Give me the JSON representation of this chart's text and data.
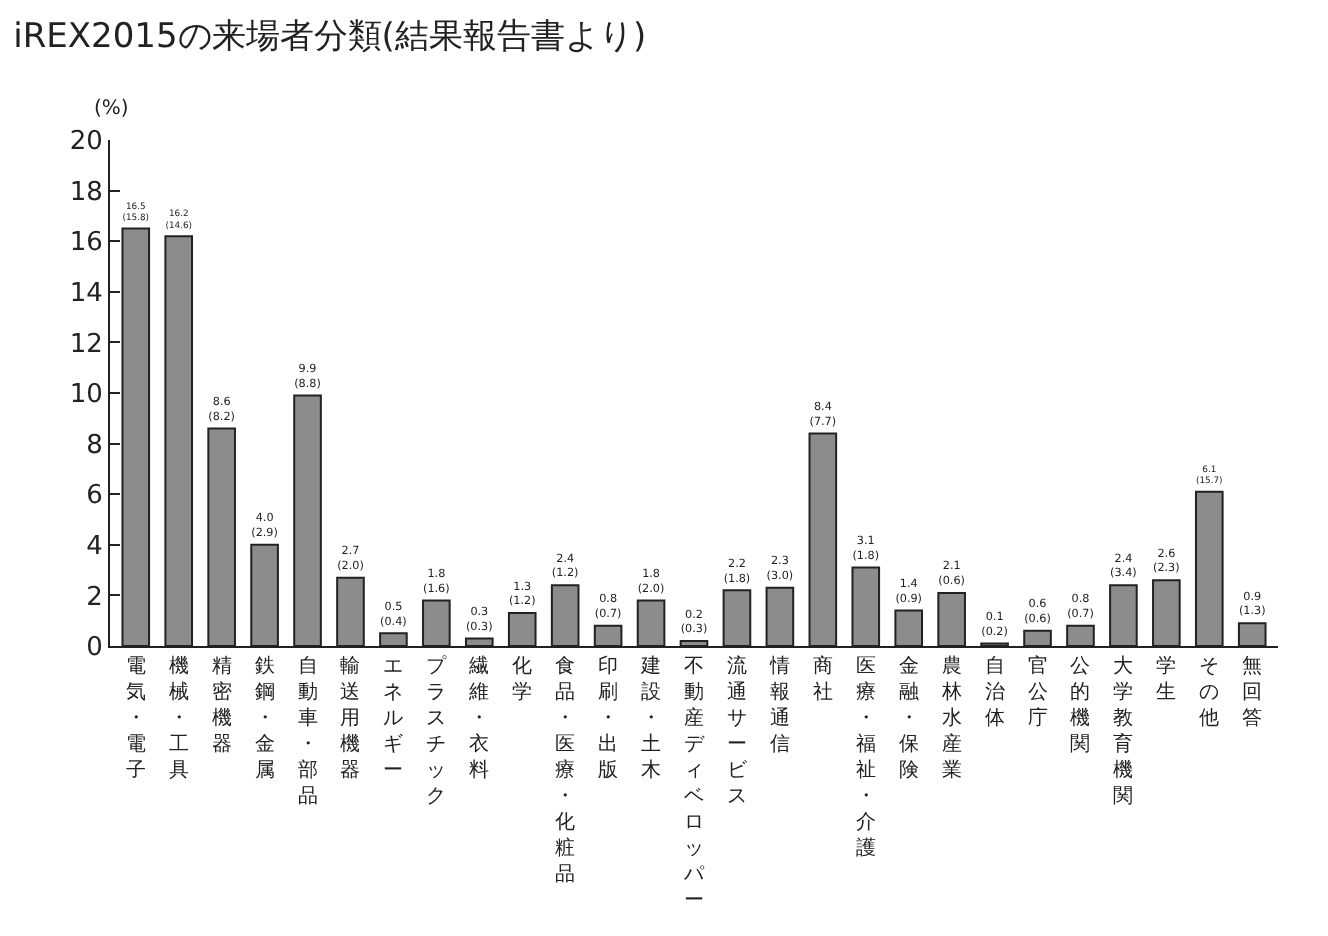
{
  "chart_data": {
    "type": "bar",
    "title": "iREX2015の来場者分類(結果報告書より)",
    "ylabel": "(%)",
    "categories": [
      "電気・電子",
      "機械・工具",
      "精密機器",
      "鉄鋼・金属",
      "自動車・部品",
      "輸送用機器",
      "エネルギー",
      "プラスチック",
      "繊維・衣料",
      "化学",
      "食品・医療・化粧品",
      "印刷・出版",
      "建設・土木",
      "不動産ディベロッパー",
      "流通サービス",
      "情報通信",
      "商社",
      "医療・福祉・介護",
      "金融・保険",
      "農林水産業",
      "自治体",
      "官公庁",
      "公的機関",
      "大学教育機関",
      "学生",
      "その他",
      "無回答"
    ],
    "values": [
      16.5,
      16.2,
      8.6,
      4.0,
      9.9,
      2.7,
      0.5,
      1.8,
      0.3,
      1.3,
      2.4,
      0.8,
      1.8,
      0.2,
      2.2,
      2.3,
      8.4,
      3.1,
      1.4,
      2.1,
      0.1,
      0.6,
      0.8,
      2.4,
      2.6,
      6.1,
      0.9
    ],
    "value_labels": [
      "16.5\n(15.8)",
      "16.2\n(14.6)",
      "8.6\n(8.2)",
      "4.0\n(2.9)",
      "9.9\n(8.8)",
      "2.7\n(2.0)",
      "0.5\n(0.4)",
      "1.8\n(1.6)",
      "0.3\n(0.3)",
      "1.3\n(1.2)",
      "2.4\n(1.2)",
      "0.8\n(0.7)",
      "1.8\n(2.0)",
      "0.2\n(0.3)",
      "2.2\n(1.8)",
      "2.3\n(3.0)",
      "8.4\n(7.7)",
      "3.1\n(1.8)",
      "1.4\n(0.9)",
      "2.1\n(0.6)",
      "0.1\n(0.2)",
      "0.6\n(0.6)",
      "0.8\n(0.7)",
      "2.4\n(3.4)",
      "2.6\n(2.3)",
      "6.1\n(15.7)",
      "0.9\n(1.3)"
    ],
    "color": "#8c8c8c",
    "ylim": [
      0,
      20
    ],
    "yticks": [
      0,
      2,
      4,
      6,
      8,
      10,
      12,
      14,
      16,
      18,
      20
    ]
  }
}
